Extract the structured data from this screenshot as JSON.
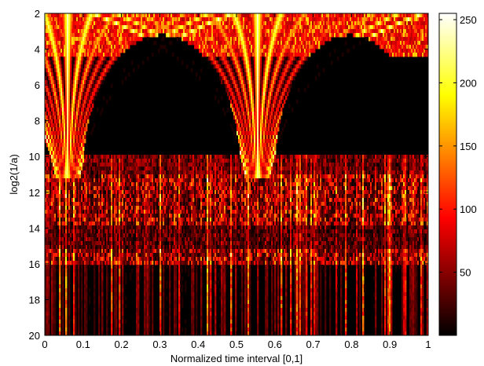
{
  "chart_data": [
    {
      "type": "heatmap",
      "title": "",
      "xlabel": "Normalized time interval [0,1]",
      "ylabel": "log2(1/a)",
      "xlim": [
        0,
        1
      ],
      "ylim": [
        2,
        20
      ],
      "y_direction": "top-down",
      "colormap": "hot",
      "grid": false,
      "x_ticks": [
        0,
        0.1,
        0.2,
        0.3,
        0.4,
        0.5,
        0.6,
        0.7,
        0.8,
        0.9,
        1
      ],
      "x_tick_labels": [
        "0",
        "0.1",
        "0.2",
        "0.3",
        "0.4",
        "0.5",
        "0.6",
        "0.7",
        "0.8",
        "0.9",
        "1"
      ],
      "y_ticks": [
        2,
        4,
        6,
        8,
        10,
        12,
        14,
        16,
        18,
        20
      ],
      "y_tick_labels": [
        "2",
        "4",
        "6",
        "8",
        "10",
        "12",
        "14",
        "16",
        "18",
        "20"
      ],
      "features": {
        "cone_apexes_x": [
          0.06,
          0.555
        ],
        "cone_apex_scale": 11,
        "arch_spans_x": [
          [
            0.1,
            0.51
          ],
          [
            0.6,
            0.99
          ]
        ],
        "dense_noise_band_scale": [
          11,
          16
        ],
        "sparse_stripes_below_scale": 16
      }
    },
    {
      "type": "colorbar",
      "colormap": "hot",
      "range": [
        0,
        255
      ],
      "ticks": [
        50,
        100,
        150,
        200,
        250
      ],
      "tick_labels": [
        "50",
        "100",
        "150",
        "200",
        "250"
      ]
    }
  ],
  "colors": {
    "hot_black": "#000000",
    "hot_red": "#ff0000",
    "hot_yellow": "#ffff00",
    "hot_white": "#ffffff",
    "axis": "#000000",
    "background": "#ffffff"
  }
}
